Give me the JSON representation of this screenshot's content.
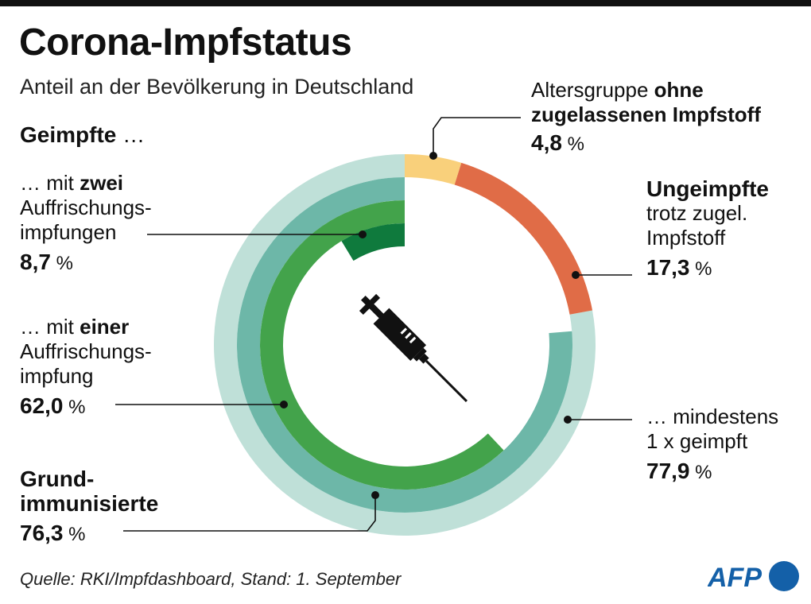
{
  "header": {
    "title": "Corona-Impfstatus",
    "subtitle": "Anteil an der Bevölkerung in Deutschland"
  },
  "labels": {
    "geimpfte_heading": "Geimpfte",
    "ellipsis": " …",
    "lead": "… mit ",
    "zwei": "zwei",
    "auffrischungs": "Auffrischungs-",
    "impfungen": "impfungen",
    "einer": "einer",
    "impfung": "impfung",
    "grund_1": "Grund-",
    "grund_2": "immunisierte",
    "alter_prefix": "Altersgruppe ",
    "alter_bold_1": "ohne",
    "alter_bold_2": "zugelassenen Impfstoff",
    "ungeimpfte": "Ungeimpfte",
    "trotz_1": "trotz zugel.",
    "trotz_2": "Impfstoff",
    "mind_1": "… mindestens",
    "mind_2": "1 x geimpft",
    "percent": " %"
  },
  "values": {
    "zwei": "8,7",
    "einer": "62,0",
    "grund": "76,3",
    "alter": "4,8",
    "ungeimpfte": "17,3",
    "mindestens": "77,9"
  },
  "footer": {
    "source": "Quelle: RKI/Impfdashboard, Stand: 1. September",
    "logo": "AFP"
  },
  "colors": {
    "mindestens_band": "#bfe0d8",
    "grund_band": "#6db7a8",
    "einer_band": "#43a34b",
    "zwei_band": "#0f7a3d",
    "ohne_impfstoff": "#f9d07b",
    "ungeimpfte": "#e06c47",
    "logo_blue": "#1460a8"
  },
  "chart_data": {
    "type": "radial_bar",
    "title": "Corona-Impfstatus",
    "subtitle": "Anteil an der Bevölkerung in Deutschland",
    "unit": "%",
    "series": [
      {
        "name": "… mindestens 1 x geimpft",
        "value": 77.9
      },
      {
        "name": "Grundimmunisierte",
        "value": 76.3
      },
      {
        "name": "… mit einer Auffrischungsimpfung",
        "value": 62.0
      },
      {
        "name": "… mit zwei Auffrischungsimpfungen",
        "value": 8.7
      },
      {
        "name": "Altersgruppe ohne zugelassenen Impfstoff",
        "value": 4.8
      },
      {
        "name": "Ungeimpfte trotz zugel. Impfstoff",
        "value": 17.3
      }
    ]
  }
}
